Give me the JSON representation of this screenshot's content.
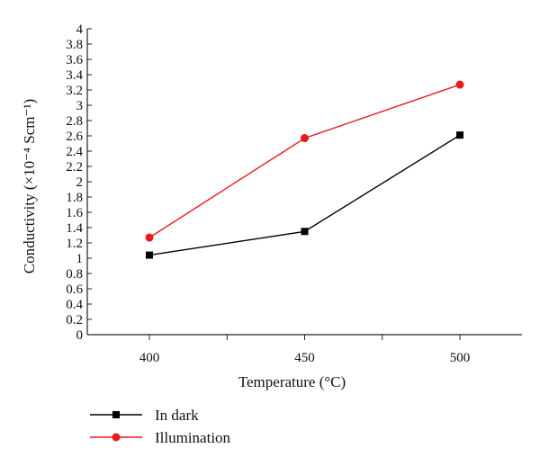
{
  "chart_data": {
    "type": "line",
    "x": [
      400,
      450,
      500
    ],
    "x_tick_labels": [
      "400",
      "450",
      "500"
    ],
    "xlabel": "Temperature (°C)",
    "ylabel": "Conductivity (×10⁻⁴ Scm⁻¹)",
    "ylim": [
      0,
      4
    ],
    "y_ticks": [
      "0",
      "0.2",
      "0.4",
      "0.6",
      "0.8",
      "1",
      "1.2",
      "1.4",
      "1.6",
      "1.8",
      "2",
      "2.2",
      "2.4",
      "2.6",
      "2.8",
      "3",
      "3.2",
      "3.4",
      "3.6",
      "3.8",
      "4"
    ],
    "grid": false,
    "legend_position": "bottom-left",
    "series": [
      {
        "name": "In dark",
        "values": [
          1.04,
          1.35,
          2.61
        ],
        "color": "#000000",
        "marker": "square"
      },
      {
        "name": "Illumination",
        "values": [
          1.27,
          2.57,
          3.27
        ],
        "color": "#e8191c",
        "marker": "circle"
      }
    ]
  }
}
